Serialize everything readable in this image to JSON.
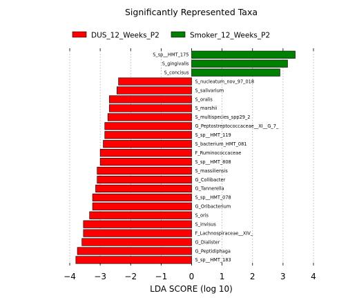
{
  "chart_data": {
    "type": "bar",
    "orientation": "horizontal",
    "title": "Significantly Represented Taxa",
    "xlabel": "LDA SCORE (log 10)",
    "ylabel": "",
    "xlim": [
      -4,
      4
    ],
    "xticks": [
      -4,
      -3,
      -2,
      -1,
      0,
      1,
      2,
      3,
      4
    ],
    "xtick_labels": [
      "−4",
      "−3",
      "−2",
      "−1",
      "0",
      "1",
      "2",
      "3",
      "4"
    ],
    "grid": true,
    "legend_position": "top",
    "series": [
      {
        "name": "DUS_12_Weeks_P2",
        "color": "#ff0000"
      },
      {
        "name": "Smoker_12_Weeks_P2",
        "color": "#008000"
      }
    ],
    "bars": [
      {
        "label": "S_sp__HMT_175",
        "value": 3.4,
        "series": 1
      },
      {
        "label": "S_gingivalis",
        "value": 3.15,
        "series": 1
      },
      {
        "label": "S_concisus",
        "value": 2.9,
        "series": 1
      },
      {
        "label": "S_nucleatum_nov_97_018",
        "value": -2.4,
        "series": 0
      },
      {
        "label": "S_salivarium",
        "value": -2.45,
        "series": 0
      },
      {
        "label": "S_oralis",
        "value": -2.7,
        "series": 0
      },
      {
        "label": "S_marshii",
        "value": -2.7,
        "series": 0
      },
      {
        "label": "S_multispecies_spp29_2",
        "value": -2.75,
        "series": 0
      },
      {
        "label": "G_Peptostreptococcaceae__XI__G_7_",
        "value": -2.85,
        "series": 0
      },
      {
        "label": "S_sp__HMT_119",
        "value": -2.85,
        "series": 0
      },
      {
        "label": "S_bacterium_HMT_081",
        "value": -2.9,
        "series": 0
      },
      {
        "label": "F_Ruminococcaceae",
        "value": -3.0,
        "series": 0
      },
      {
        "label": "S_sp__HMT_808",
        "value": -3.0,
        "series": 0
      },
      {
        "label": "S_massiliensis",
        "value": -3.1,
        "series": 0
      },
      {
        "label": "G_Collibacter",
        "value": -3.1,
        "series": 0
      },
      {
        "label": "G_Tannerella",
        "value": -3.15,
        "series": 0
      },
      {
        "label": "S_sp__HMT_078",
        "value": -3.25,
        "series": 0
      },
      {
        "label": "G_Oribacterium",
        "value": -3.25,
        "series": 0
      },
      {
        "label": "S_oris",
        "value": -3.35,
        "series": 0
      },
      {
        "label": "S_invisus",
        "value": -3.55,
        "series": 0
      },
      {
        "label": "F_Lachnospiraceae__XIV_",
        "value": -3.55,
        "series": 0
      },
      {
        "label": "G_Dialister",
        "value": -3.6,
        "series": 0
      },
      {
        "label": "G_Peptidiphaga",
        "value": -3.75,
        "series": 0
      },
      {
        "label": "S_sp__HMT_183",
        "value": -3.8,
        "series": 0
      }
    ]
  }
}
